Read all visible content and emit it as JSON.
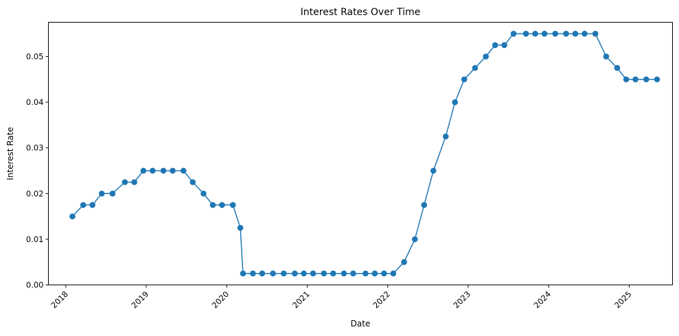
{
  "chart_data": {
    "type": "line",
    "title": "Interest Rates Over Time",
    "xlabel": "Date",
    "ylabel": "Interest Rate",
    "x_ticks": [
      "2018",
      "2019",
      "2020",
      "2021",
      "2022",
      "2023",
      "2024",
      "2025"
    ],
    "y_ticks": [
      "0.00",
      "0.01",
      "0.02",
      "0.03",
      "0.04",
      "0.05"
    ],
    "xlim": [
      "2017-10-14",
      "2025-07-16"
    ],
    "ylim": [
      0.0,
      0.0575
    ],
    "grid": false,
    "series": [
      {
        "color": "#1f77b4",
        "marker": "circle",
        "x": [
          "2018-01-31",
          "2018-03-21",
          "2018-05-02",
          "2018-06-13",
          "2018-08-01",
          "2018-09-26",
          "2018-11-08",
          "2018-12-19",
          "2019-01-30",
          "2019-03-20",
          "2019-05-01",
          "2019-06-19",
          "2019-07-31",
          "2019-09-18",
          "2019-10-30",
          "2019-12-11",
          "2020-01-29",
          "2020-03-03",
          "2020-03-15",
          "2020-04-29",
          "2020-06-10",
          "2020-07-29",
          "2020-09-16",
          "2020-11-05",
          "2020-12-16",
          "2021-01-27",
          "2021-03-17",
          "2021-04-28",
          "2021-06-16",
          "2021-07-28",
          "2021-09-22",
          "2021-11-03",
          "2021-12-15",
          "2022-01-26",
          "2022-03-16",
          "2022-05-04",
          "2022-06-15",
          "2022-07-27",
          "2022-09-21",
          "2022-11-02",
          "2022-12-14",
          "2023-02-01",
          "2023-03-22",
          "2023-05-03",
          "2023-06-14",
          "2023-07-26",
          "2023-09-20",
          "2023-11-01",
          "2023-12-13",
          "2024-01-31",
          "2024-03-20",
          "2024-05-01",
          "2024-06-12",
          "2024-07-31",
          "2024-09-18",
          "2024-11-07",
          "2024-12-18",
          "2025-01-29",
          "2025-03-19",
          "2025-05-07"
        ],
        "y": [
          0.015,
          0.0175,
          0.0175,
          0.02,
          0.02,
          0.0225,
          0.0225,
          0.025,
          0.025,
          0.025,
          0.025,
          0.025,
          0.0225,
          0.02,
          0.0175,
          0.0175,
          0.0175,
          0.0125,
          0.0025,
          0.0025,
          0.0025,
          0.0025,
          0.0025,
          0.0025,
          0.0025,
          0.0025,
          0.0025,
          0.0025,
          0.0025,
          0.0025,
          0.0025,
          0.0025,
          0.0025,
          0.0025,
          0.005,
          0.01,
          0.0175,
          0.025,
          0.0325,
          0.04,
          0.045,
          0.0475,
          0.05,
          0.0525,
          0.0525,
          0.055,
          0.055,
          0.055,
          0.055,
          0.055,
          0.055,
          0.055,
          0.055,
          0.055,
          0.05,
          0.0475,
          0.045,
          0.045,
          0.045,
          0.045
        ]
      }
    ]
  }
}
